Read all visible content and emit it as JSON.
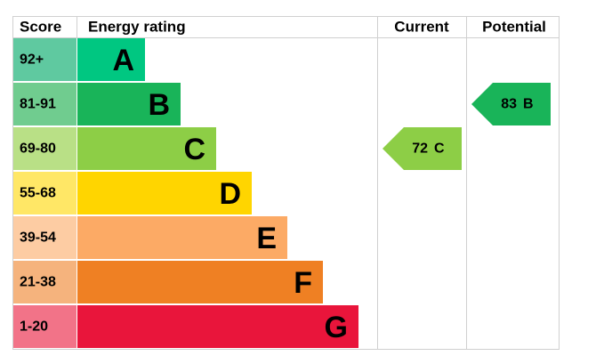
{
  "header": {
    "score": "Score",
    "rating": "Energy rating",
    "current": "Current",
    "potential": "Potential"
  },
  "bands": [
    {
      "range": "92+",
      "letter": "A",
      "color": "#00c781",
      "score_color": "#5fc9a0"
    },
    {
      "range": "81-91",
      "letter": "B",
      "color": "#19b459",
      "score_color": "#70cc8f"
    },
    {
      "range": "69-80",
      "letter": "C",
      "color": "#8dce46",
      "score_color": "#b9e086"
    },
    {
      "range": "55-68",
      "letter": "D",
      "color": "#ffd500",
      "score_color": "#ffe766"
    },
    {
      "range": "39-54",
      "letter": "E",
      "color": "#fcaa65",
      "score_color": "#fdcca3"
    },
    {
      "range": "21-38",
      "letter": "F",
      "color": "#ef8023",
      "score_color": "#f5b37d"
    },
    {
      "range": "1-20",
      "letter": "G",
      "color": "#e9153b",
      "score_color": "#f27388"
    }
  ],
  "current": {
    "value": 72,
    "letter": "C"
  },
  "potential": {
    "value": 83,
    "letter": "B"
  }
}
